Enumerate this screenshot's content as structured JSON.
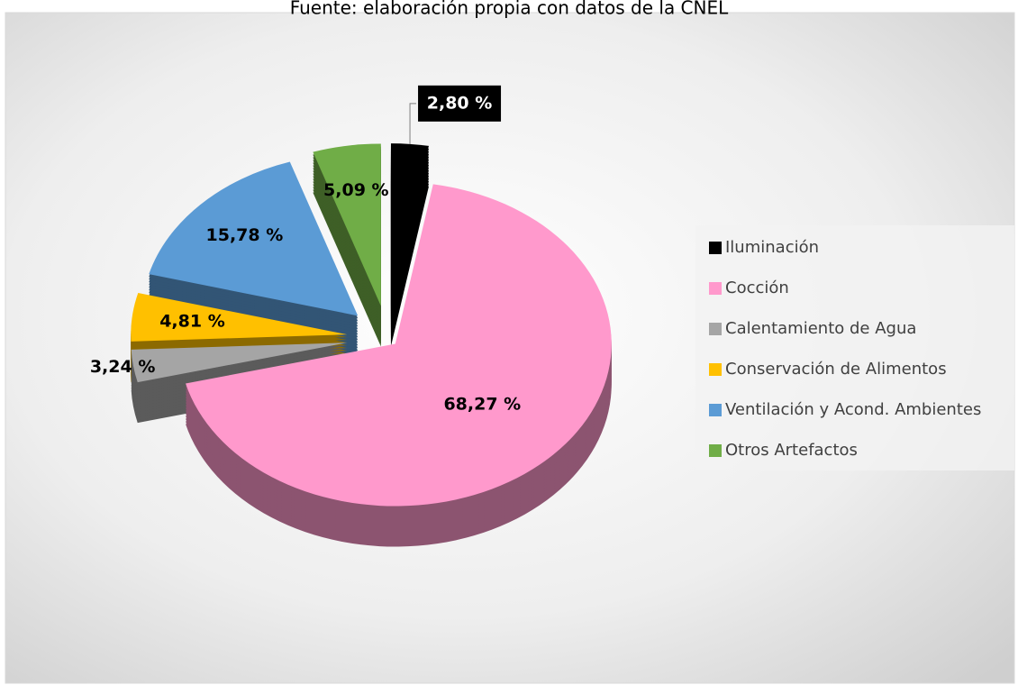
{
  "chart_data": {
    "type": "pie",
    "title": "Fuente: elaboración propia con datos de la CNEL",
    "categories": [
      "Iluminación",
      "Cocción",
      "Calentamiento de Agua",
      "Conservación de Alimentos",
      "Ventilación y Acond. Ambientes",
      "Otros Artefactos"
    ],
    "values": [
      2.8,
      68.27,
      3.24,
      4.81,
      15.78,
      5.09
    ],
    "value_labels": [
      "2,80 %",
      "68,27 %",
      "3,24 %",
      "4,81 %",
      "15,78 %",
      "5,09 %"
    ],
    "colors": [
      "#000000",
      "#ff99cc",
      "#a5a5a5",
      "#ffc000",
      "#5b9bd5",
      "#70ad47"
    ],
    "legend": "right"
  }
}
